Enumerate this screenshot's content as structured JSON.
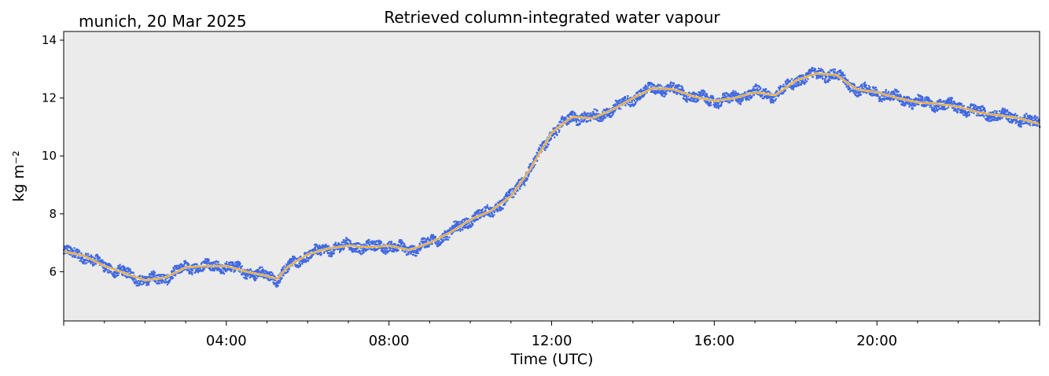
{
  "header": {
    "location_date": "munich, 20 Mar 2025"
  },
  "chart_data": {
    "type": "line",
    "title": "Retrieved column-integrated water vapour",
    "xlabel": "Time (UTC)",
    "ylabel": "kg m⁻²",
    "xlim": [
      0,
      24
    ],
    "ylim": [
      4.3,
      14.3
    ],
    "x_ticks": [
      {
        "value": 4,
        "label": "04:00"
      },
      {
        "value": 8,
        "label": "08:00"
      },
      {
        "value": 12,
        "label": "12:00"
      },
      {
        "value": 16,
        "label": "16:00"
      },
      {
        "value": 20,
        "label": "20:00"
      }
    ],
    "y_ticks": [
      {
        "value": 6,
        "label": "6"
      },
      {
        "value": 8,
        "label": "8"
      },
      {
        "value": 10,
        "label": "10"
      },
      {
        "value": 12,
        "label": "12"
      },
      {
        "value": 14,
        "label": "14"
      }
    ],
    "grid": false,
    "background_color": "#ebebeb",
    "series": [
      {
        "kind": "raw-scatter",
        "color": "#4169e1",
        "spread": 0.17,
        "x": [
          0,
          0.5,
          1.0,
          1.5,
          2.0,
          2.5,
          3.0,
          3.5,
          4.0,
          4.5,
          5.0,
          5.25,
          5.5,
          6.0,
          6.5,
          7.0,
          7.5,
          8.0,
          8.5,
          9.0,
          9.5,
          10.0,
          10.5,
          11.0,
          11.5,
          12.0,
          12.5,
          13.0,
          13.5,
          14.0,
          14.5,
          15.0,
          15.5,
          16.0,
          16.5,
          17.0,
          17.5,
          18.0,
          18.5,
          19.0,
          19.5,
          20.0,
          20.5,
          21.0,
          21.5,
          22.0,
          22.5,
          23.0,
          23.5,
          24.0
        ],
        "y": [
          6.7,
          6.55,
          6.2,
          5.95,
          5.7,
          5.8,
          6.15,
          6.2,
          6.2,
          6.0,
          5.85,
          5.75,
          6.15,
          6.6,
          6.8,
          6.9,
          6.85,
          6.9,
          6.75,
          7.0,
          7.35,
          7.8,
          8.1,
          8.6,
          9.6,
          10.8,
          11.35,
          11.3,
          11.6,
          12.0,
          12.35,
          12.3,
          12.05,
          11.9,
          12.0,
          12.2,
          12.1,
          12.6,
          12.85,
          12.8,
          12.3,
          12.2,
          12.0,
          11.85,
          11.8,
          11.7,
          11.5,
          11.4,
          11.3,
          11.1
        ]
      },
      {
        "kind": "smoothed-line",
        "color": "#ffa500",
        "x": [
          0,
          0.5,
          1.0,
          1.5,
          2.0,
          2.5,
          3.0,
          3.5,
          4.0,
          4.5,
          5.0,
          5.25,
          5.5,
          6.0,
          6.5,
          7.0,
          7.5,
          8.0,
          8.5,
          9.0,
          9.5,
          10.0,
          10.5,
          11.0,
          11.5,
          12.0,
          12.5,
          13.0,
          13.5,
          14.0,
          14.5,
          15.0,
          15.5,
          16.0,
          16.5,
          17.0,
          17.5,
          18.0,
          18.5,
          19.0,
          19.5,
          20.0,
          20.5,
          21.0,
          21.5,
          22.0,
          22.5,
          23.0,
          23.5,
          24.0
        ],
        "y": [
          6.7,
          6.55,
          6.2,
          5.95,
          5.7,
          5.8,
          6.15,
          6.2,
          6.2,
          6.0,
          5.85,
          5.75,
          6.15,
          6.6,
          6.8,
          6.9,
          6.85,
          6.9,
          6.75,
          7.0,
          7.35,
          7.8,
          8.1,
          8.6,
          9.6,
          10.8,
          11.35,
          11.3,
          11.6,
          12.0,
          12.35,
          12.3,
          12.05,
          11.9,
          12.0,
          12.2,
          12.1,
          12.6,
          12.85,
          12.8,
          12.3,
          12.2,
          12.0,
          11.85,
          11.8,
          11.7,
          11.5,
          11.4,
          11.3,
          11.1
        ]
      }
    ]
  }
}
